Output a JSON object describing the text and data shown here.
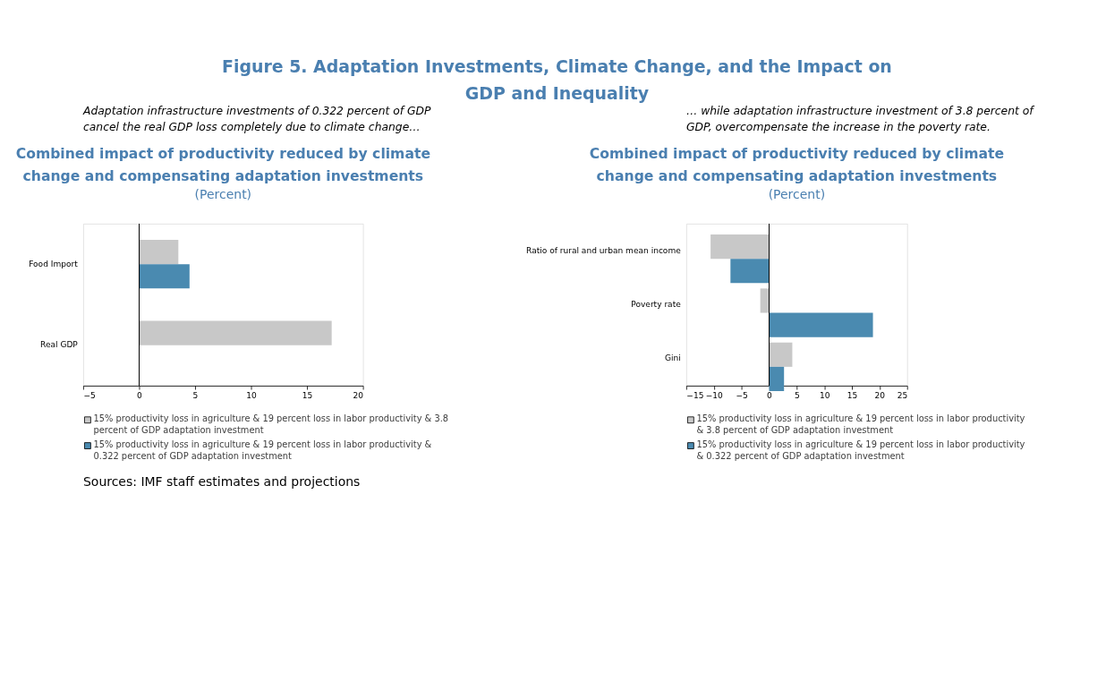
{
  "chart_data": [
    {
      "type": "bar",
      "orientation": "horizontal",
      "title": "Combined impact of productivity reduced by climate change and compensating adaptation investments",
      "subtitle": "(Percent)",
      "annotations": [
        "Figure 5. Adaptation Investments, Climate Change, and the Impact on GDP and Inequality",
        "Adaptation infrastructure investments of 0.322 percent of GDP cancel the real GDP loss completely due to climate change…",
        "Sources: IMF staff estimates and projections"
      ],
      "categories": [
        "Food Import",
        "Real GDP"
      ],
      "series": [
        {
          "name": "15% productivity loss in agriculture & 19 percent loss in labor productivity & 3.8 percent of GDP adaptation investment",
          "color": "#c8c8c8",
          "values": [
            3.5,
            17.2
          ]
        },
        {
          "name": "15% productivity loss in agriculture & 19 percent loss in labor productivity & 0.322 percent of GDP adaptation investment",
          "color": "#4a8ab0",
          "values": [
            4.5,
            0
          ]
        }
      ],
      "xlim": [
        -5,
        20
      ],
      "xticks": [
        -5,
        0,
        5,
        10,
        15,
        20
      ],
      "ref_lines": [
        {
          "axis": "x",
          "value": 0
        }
      ],
      "grid": false,
      "legend": "bottom"
    },
    {
      "type": "bar",
      "orientation": "horizontal",
      "title": "Combined impact of productivity reduced by climate change and compensating adaptation investments",
      "subtitle": "(Percent)",
      "annotations": [
        "… while adaptation infrastructure investment of 3.8 percent of GDP, overcompensate the increase in the poverty rate."
      ],
      "categories": [
        "Ratio of rural and urban mean income",
        "Poverty rate",
        "Gini"
      ],
      "series": [
        {
          "name": "15% productivity loss in agriculture & 19 percent loss in labor productivity & 3.8 percent of GDP adaptation investment",
          "color": "#c8c8c8",
          "values": [
            -10.6,
            -1.6,
            4.2
          ]
        },
        {
          "name": "15% productivity loss in agriculture & 19 percent loss in labor productivity & 0.322 percent of GDP adaptation investment",
          "color": "#4a8ab0",
          "values": [
            -7.0,
            18.8,
            2.7
          ]
        }
      ],
      "xlim": [
        -15,
        25
      ],
      "xticks": [
        -15,
        -10,
        -5,
        0,
        5,
        10,
        15,
        20,
        25
      ],
      "ref_lines": [
        {
          "axis": "x",
          "value": 0
        }
      ],
      "grid": false,
      "legend": "bottom"
    }
  ]
}
